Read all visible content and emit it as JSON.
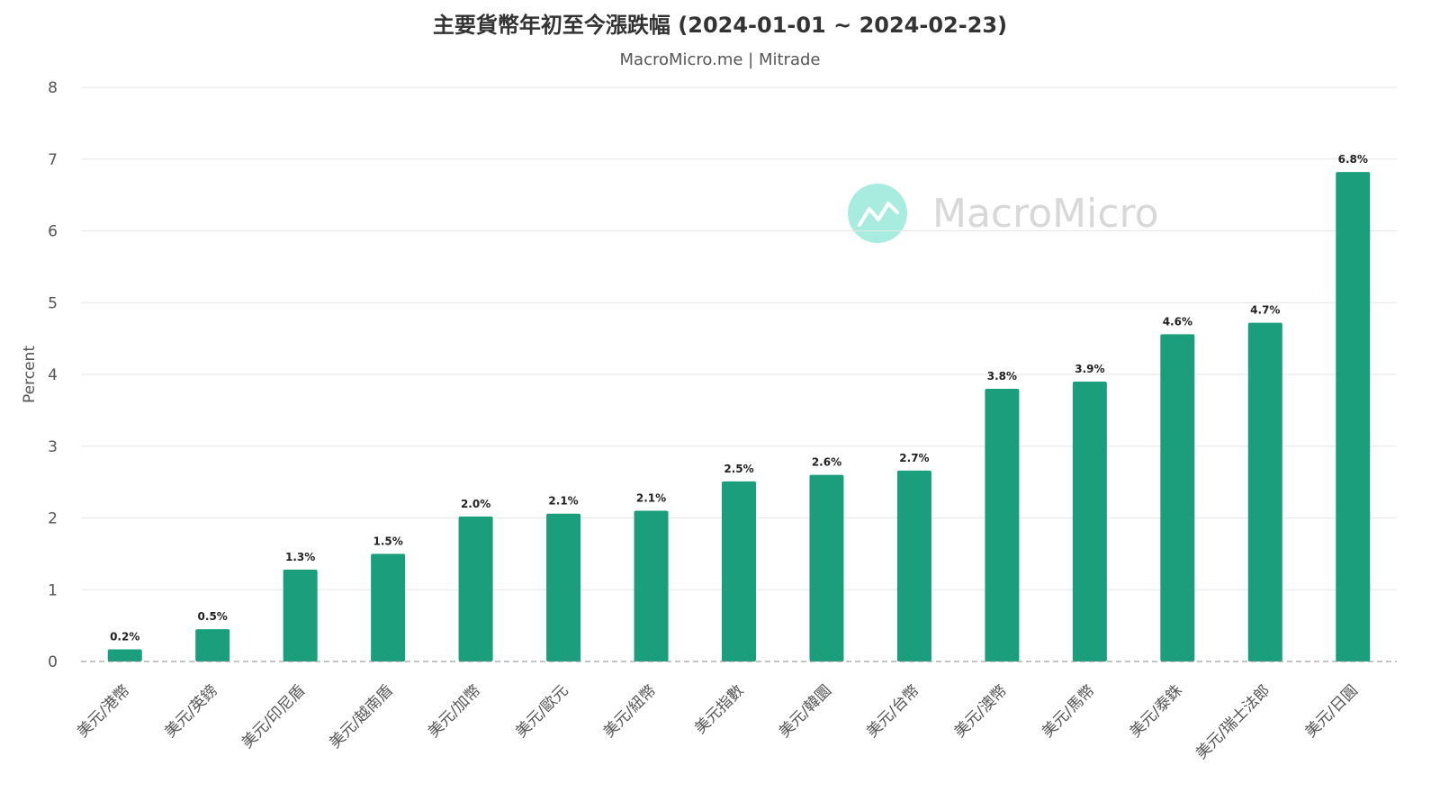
{
  "chart_data": {
    "type": "bar",
    "title": "主要貨幣年初至今漲跌幅 (2024-01-01 ~ 2024-02-23)",
    "subtitle": "MacroMicro.me | Mitrade",
    "xlabel": "",
    "ylabel": "Percent",
    "ylim": [
      0,
      8
    ],
    "yticks": [
      "0",
      "1",
      "2",
      "3",
      "4",
      "5",
      "6",
      "7",
      "8"
    ],
    "grid": true,
    "categories": [
      "美元/港幣",
      "美元/英鎊",
      "美元/印尼盾",
      "美元/越南盾",
      "美元/加幣",
      "美元/歐元",
      "美元/紐幣",
      "美元指數",
      "美元/韓圜",
      "美元/台幣",
      "美元/澳幣",
      "美元/馬幣",
      "美元/泰銖",
      "美元/瑞士法郎",
      "美元/日圓"
    ],
    "values": [
      0.17,
      0.45,
      1.28,
      1.5,
      2.02,
      2.06,
      2.1,
      2.51,
      2.6,
      2.66,
      3.8,
      3.9,
      4.56,
      4.72,
      6.82
    ],
    "data_labels": [
      "0.2%",
      "0.5%",
      "1.3%",
      "1.5%",
      "2.0%",
      "2.1%",
      "2.1%",
      "2.5%",
      "2.6%",
      "2.7%",
      "3.8%",
      "3.9%",
      "4.6%",
      "4.7%",
      "6.8%"
    ],
    "bar_color": "#1a9e7c"
  },
  "watermark": {
    "text": "MacroMicro",
    "logo_color": "#a8ece0"
  }
}
